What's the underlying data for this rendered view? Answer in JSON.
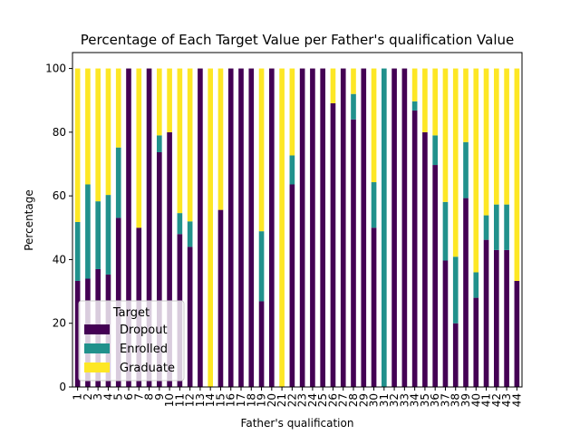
{
  "chart_data": {
    "type": "bar",
    "stacked": true,
    "title": "Percentage of Each Target Value per Father's qualification Value",
    "xlabel": "Father's qualification",
    "ylabel": "Percentage",
    "ylim": [
      0,
      105
    ],
    "yticks": [
      0,
      20,
      40,
      60,
      80,
      100
    ],
    "grid": false,
    "categories": [
      "1",
      "2",
      "3",
      "4",
      "5",
      "6",
      "7",
      "8",
      "9",
      "10",
      "11",
      "12",
      "13",
      "14",
      "15",
      "16",
      "17",
      "18",
      "19",
      "20",
      "21",
      "22",
      "23",
      "24",
      "25",
      "26",
      "27",
      "28",
      "29",
      "30",
      "31",
      "32",
      "33",
      "34",
      "35",
      "36",
      "37",
      "38",
      "39",
      "40",
      "41",
      "42",
      "43",
      "44"
    ],
    "series": [
      {
        "name": "Dropout",
        "color": "#440154",
        "values": [
          33.3,
          34.0,
          37.0,
          35.3,
          53.1,
          100,
          50.0,
          100,
          73.7,
          80.0,
          48.0,
          44.0,
          100,
          0,
          55.6,
          100,
          100,
          100,
          26.9,
          100,
          0,
          63.6,
          100,
          100,
          100,
          89.1,
          100,
          84.0,
          100,
          50.0,
          0,
          100,
          100,
          86.8,
          80.0,
          69.7,
          39.7,
          20.0,
          59.3,
          28.0,
          46.2,
          43.0,
          43.0,
          33.3
        ]
      },
      {
        "name": "Enrolled",
        "color": "#21918c",
        "values": [
          18.5,
          29.6,
          21.3,
          25.0,
          22.1,
          0,
          0,
          0,
          5.3,
          0,
          6.6,
          8.0,
          0,
          0,
          0,
          0,
          0,
          0,
          22.0,
          0,
          0,
          9.1,
          0,
          0,
          0,
          0,
          0,
          8.0,
          0,
          14.3,
          100,
          0,
          0,
          2.9,
          0,
          9.3,
          18.4,
          20.9,
          17.6,
          8.0,
          7.7,
          14.3,
          14.3,
          0
        ]
      },
      {
        "name": "Graduate",
        "color": "#fde725",
        "values": [
          48.2,
          36.4,
          41.7,
          39.7,
          24.8,
          0,
          50.0,
          0,
          21.0,
          20.0,
          45.4,
          48.0,
          0,
          100,
          44.4,
          0,
          0,
          0,
          51.1,
          0,
          100,
          27.3,
          0,
          0,
          0,
          10.9,
          0,
          8.0,
          0,
          35.7,
          0,
          0,
          0,
          10.3,
          20.0,
          21.0,
          41.9,
          59.1,
          23.1,
          64.0,
          46.1,
          42.7,
          42.7,
          66.7
        ]
      }
    ],
    "legend": {
      "title": "Target",
      "placement": "lower-left"
    }
  }
}
